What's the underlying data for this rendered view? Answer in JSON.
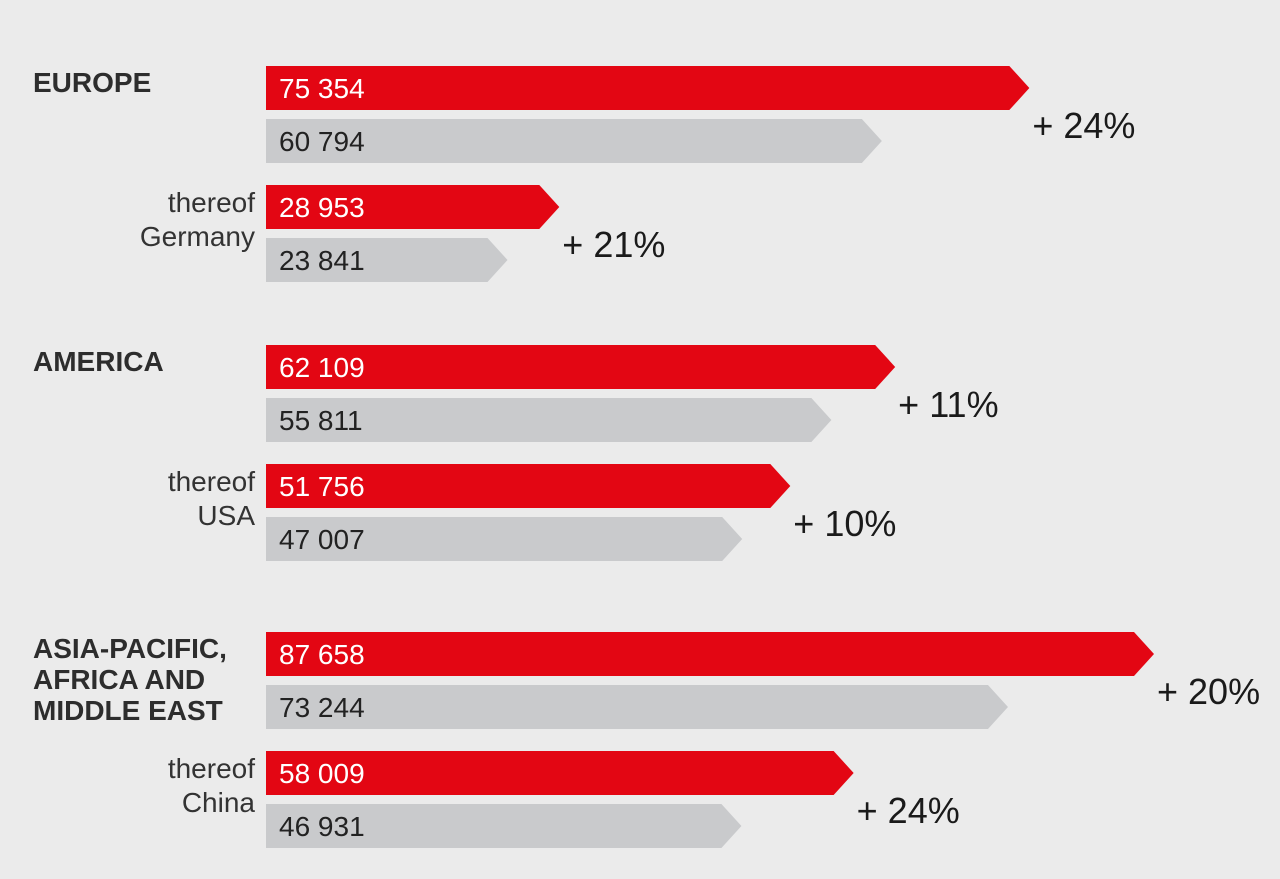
{
  "colors": {
    "background": "#ebebeb",
    "current": "#e30613",
    "prior": "#c9cacc"
  },
  "chart_data": {
    "type": "bar",
    "orientation": "horizontal",
    "xlim": [
      0,
      87658
    ],
    "groups": [
      {
        "label": "EUROPE",
        "current": 75354,
        "prior": 60794,
        "current_label": "75 354",
        "prior_label": "60 794",
        "change": "+ 24%",
        "sub": {
          "label_line1": "thereof",
          "label_line2": "Germany",
          "current": 28953,
          "prior": 23841,
          "current_label": "28 953",
          "prior_label": "23 841",
          "change": "+ 21%"
        }
      },
      {
        "label": "AMERICA",
        "current": 62109,
        "prior": 55811,
        "current_label": "62 109",
        "prior_label": "55 811",
        "change": "+ 11%",
        "sub": {
          "label_line1": "thereof",
          "label_line2": "USA",
          "current": 51756,
          "prior": 47007,
          "current_label": "51 756",
          "prior_label": "47 007",
          "change": "+ 10%"
        }
      },
      {
        "label": "ASIA-PACIFIC,\nAFRICA AND\nMIDDLE EAST",
        "current": 87658,
        "prior": 73244,
        "current_label": "87 658",
        "prior_label": "73 244",
        "change": "+ 20%",
        "sub": {
          "label_line1": "thereof",
          "label_line2": "China",
          "current": 58009,
          "prior": 46931,
          "current_label": "58 009",
          "prior_label": "46 931",
          "change": "+ 24%"
        }
      }
    ]
  }
}
